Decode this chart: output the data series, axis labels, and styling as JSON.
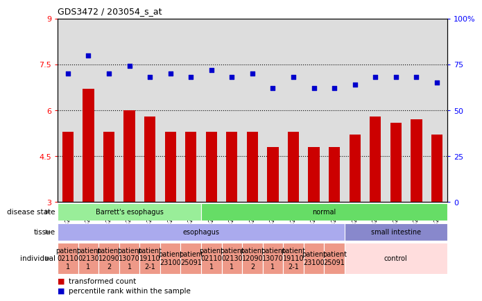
{
  "title": "GDS3472 / 203054_s_at",
  "samples": [
    "GSM327649",
    "GSM327650",
    "GSM327651",
    "GSM327652",
    "GSM327653",
    "GSM327654",
    "GSM327655",
    "GSM327642",
    "GSM327643",
    "GSM327644",
    "GSM327645",
    "GSM327646",
    "GSM327647",
    "GSM327648",
    "GSM327637",
    "GSM327638",
    "GSM327639",
    "GSM327640",
    "GSM327641"
  ],
  "bar_values": [
    5.3,
    6.7,
    5.3,
    6.0,
    5.8,
    5.3,
    5.3,
    5.3,
    5.3,
    5.3,
    4.8,
    5.3,
    4.8,
    4.8,
    5.2,
    5.8,
    5.6,
    5.7,
    5.2
  ],
  "dot_values": [
    70,
    80,
    70,
    74,
    68,
    70,
    68,
    72,
    68,
    70,
    62,
    68,
    62,
    62,
    64,
    68,
    68,
    68,
    65
  ],
  "bar_color": "#cc0000",
  "dot_color": "#0000cc",
  "ylim_left": [
    3,
    9
  ],
  "ylim_right": [
    0,
    100
  ],
  "yticks_left": [
    3,
    4.5,
    6,
    7.5,
    9
  ],
  "yticks_right": [
    0,
    25,
    50,
    75,
    100
  ],
  "hlines": [
    4.5,
    6.0,
    7.5
  ],
  "disease_state_groups": [
    {
      "label": "Barrett's esophagus",
      "start": 0,
      "end": 7,
      "color": "#99ee99"
    },
    {
      "label": "normal",
      "start": 7,
      "end": 19,
      "color": "#66dd66"
    }
  ],
  "tissue_groups": [
    {
      "label": "esophagus",
      "start": 0,
      "end": 14,
      "color": "#aaaaee"
    },
    {
      "label": "small intestine",
      "start": 14,
      "end": 19,
      "color": "#8888cc"
    }
  ],
  "individual_groups": [
    {
      "label": "patient\n02110\n1",
      "start": 0,
      "end": 1,
      "color": "#ee9988"
    },
    {
      "label": "patient\n02130\n1",
      "start": 1,
      "end": 2,
      "color": "#ee9988"
    },
    {
      "label": "patient\n12090\n2",
      "start": 2,
      "end": 3,
      "color": "#ee9988"
    },
    {
      "label": "patient\n13070\n1",
      "start": 3,
      "end": 4,
      "color": "#ee9988"
    },
    {
      "label": "patient\n19110\n2-1",
      "start": 4,
      "end": 5,
      "color": "#ee9988"
    },
    {
      "label": "patient\n23100",
      "start": 5,
      "end": 6,
      "color": "#ee9988"
    },
    {
      "label": "patient\n25091",
      "start": 6,
      "end": 7,
      "color": "#ee9988"
    },
    {
      "label": "patient\n02110\n1",
      "start": 7,
      "end": 8,
      "color": "#ee9988"
    },
    {
      "label": "patient\n02130\n1",
      "start": 8,
      "end": 9,
      "color": "#ee9988"
    },
    {
      "label": "patient\n12090\n2",
      "start": 9,
      "end": 10,
      "color": "#ee9988"
    },
    {
      "label": "patient\n13070\n1",
      "start": 10,
      "end": 11,
      "color": "#ee9988"
    },
    {
      "label": "patient\n19110\n2-1",
      "start": 11,
      "end": 12,
      "color": "#ee9988"
    },
    {
      "label": "patient\n23100",
      "start": 12,
      "end": 13,
      "color": "#ee9988"
    },
    {
      "label": "patient\n25091",
      "start": 13,
      "end": 14,
      "color": "#ee9988"
    },
    {
      "label": "control",
      "start": 14,
      "end": 19,
      "color": "#ffdddd"
    }
  ],
  "row_labels": [
    "disease state",
    "tissue",
    "individual"
  ],
  "legend_items": [
    {
      "color": "#cc0000",
      "label": "transformed count"
    },
    {
      "color": "#0000cc",
      "label": "percentile rank within the sample"
    }
  ],
  "plot_bg": "#dddddd",
  "fig_bg": "#ffffff"
}
